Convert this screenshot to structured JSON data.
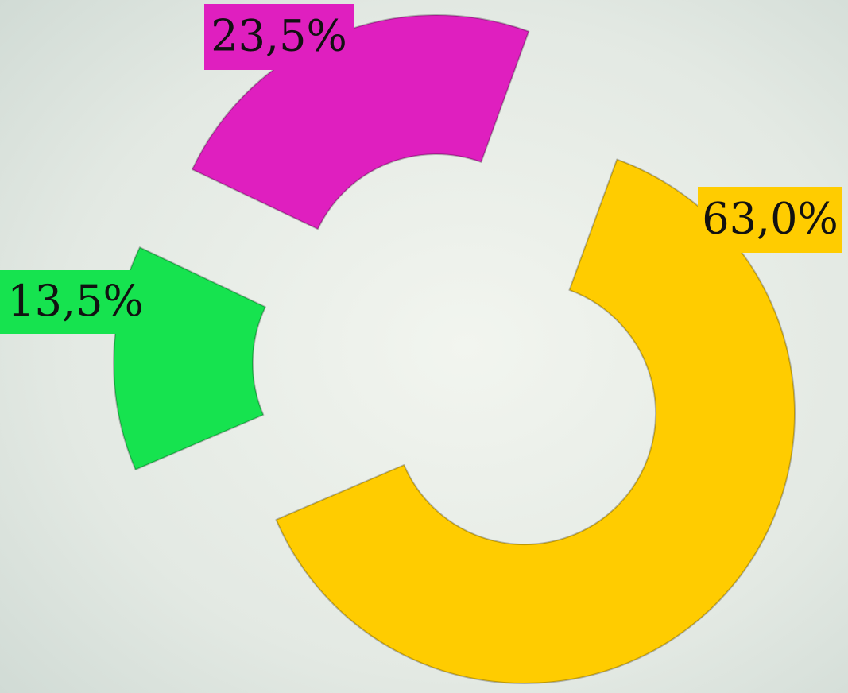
{
  "chart_data": {
    "type": "donut",
    "categories": [
      null,
      null,
      null
    ],
    "values": [
      63.0,
      13.5,
      23.5
    ],
    "value_labels": [
      "63,0%",
      "13,5%",
      "23,5%"
    ],
    "colors": [
      "#ffcc00",
      "#16e34f",
      "#df1fbf"
    ]
  }
}
